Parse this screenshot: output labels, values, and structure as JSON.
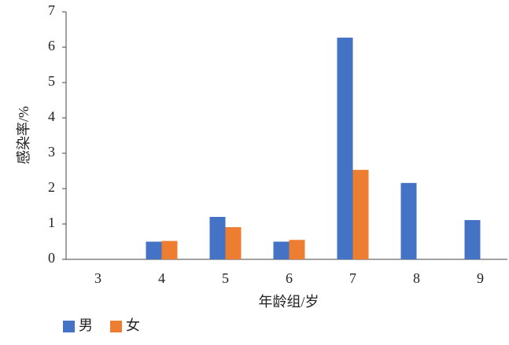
{
  "chart_data": {
    "type": "bar",
    "x_label": "年龄组/岁",
    "y_label": "感染率/%",
    "categories": [
      "3",
      "4",
      "5",
      "6",
      "7",
      "8",
      "9"
    ],
    "series": [
      {
        "name": "男",
        "color": "#4472c4",
        "values": [
          0,
          0.5,
          1.2,
          0.5,
          6.27,
          2.16,
          1.11
        ]
      },
      {
        "name": "女",
        "color": "#ed7d31",
        "values": [
          0,
          0.52,
          0.91,
          0.55,
          2.53,
          0,
          0
        ]
      }
    ],
    "ylim": [
      0,
      7
    ],
    "yticks": [
      0,
      1,
      2,
      3,
      4,
      5,
      6,
      7
    ],
    "grid": false,
    "legend": "bottom-left"
  }
}
